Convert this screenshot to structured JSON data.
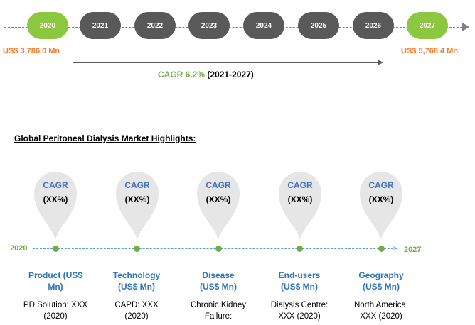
{
  "timeline": {
    "years": [
      "2020",
      "2021",
      "2022",
      "2023",
      "2024",
      "2025",
      "2026",
      "2027"
    ],
    "highlighted_years": [
      "2020",
      "2027"
    ],
    "start_value": "US$ 3,786.0 Mn",
    "end_value": "US$ 5,768.4 Mn",
    "cagr_label": "CAGR 6.2%",
    "cagr_period": "(2021-2027)"
  },
  "highlights": {
    "title": "Global Peritoneal Dialysis Market Highlights:",
    "start_year": "2020",
    "end_year": "2027",
    "pins": [
      {
        "label": "CAGR",
        "value": "(XX%)"
      },
      {
        "label": "CAGR",
        "value": "(XX%)"
      },
      {
        "label": "CAGR",
        "value": "(XX%)"
      },
      {
        "label": "CAGR",
        "value": "(XX%)"
      },
      {
        "label": "CAGR",
        "value": "(XX%)"
      }
    ],
    "segments": [
      {
        "title_1": "Product (US$",
        "title_2": "Mn)",
        "value_1": "PD Solution: XXX",
        "value_2": "(2020)"
      },
      {
        "title_1": "Technology",
        "title_2": "(US$ Mn)",
        "value_1": "CAPD: XXX",
        "value_2": "(2020)"
      },
      {
        "title_1": "Disease",
        "title_2": "(US$ Mn)",
        "value_1": "Chronic Kidney",
        "value_2": "Failure:"
      },
      {
        "title_1": "End-users",
        "title_2": "(US$ Mn)",
        "value_1": "Dialysis Centre:",
        "value_2": "XXX (2020)"
      },
      {
        "title_1": "Geography",
        "title_2": "(US$ Mn)",
        "value_1": "North America:",
        "value_2": "XXX (2020)"
      }
    ]
  },
  "colors": {
    "green": "#8dc63f",
    "dark_gray": "#595959",
    "orange": "#ed7d31",
    "blue": "#4472c4",
    "pin_gray": "#e7e6e6"
  }
}
